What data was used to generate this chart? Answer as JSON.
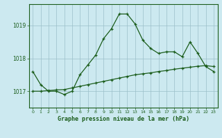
{
  "x": [
    0,
    1,
    2,
    3,
    4,
    5,
    6,
    7,
    8,
    9,
    10,
    11,
    12,
    13,
    14,
    15,
    16,
    17,
    18,
    19,
    20,
    21,
    22,
    23
  ],
  "line1": [
    1017.6,
    1017.2,
    1017.0,
    1017.0,
    1016.9,
    1017.0,
    1017.5,
    1017.8,
    1018.1,
    1018.6,
    1018.9,
    1019.35,
    1019.35,
    1019.05,
    1018.55,
    1018.3,
    1018.15,
    1018.2,
    1018.2,
    1018.05,
    1018.5,
    1018.15,
    1017.75,
    1017.6
  ],
  "line2": [
    1017.0,
    1017.0,
    1017.02,
    1017.04,
    1017.05,
    1017.1,
    1017.15,
    1017.2,
    1017.25,
    1017.3,
    1017.35,
    1017.4,
    1017.45,
    1017.5,
    1017.53,
    1017.56,
    1017.6,
    1017.63,
    1017.67,
    1017.7,
    1017.73,
    1017.76,
    1017.78,
    1017.75
  ],
  "line_color": "#1a5c1a",
  "bg_color": "#cce9f0",
  "grid_color": "#9bbfc8",
  "xlabel": "Graphe pression niveau de la mer (hPa)",
  "yticks": [
    1017,
    1018,
    1019
  ],
  "ylim": [
    1016.5,
    1019.65
  ],
  "xlim": [
    -0.5,
    23.5
  ]
}
